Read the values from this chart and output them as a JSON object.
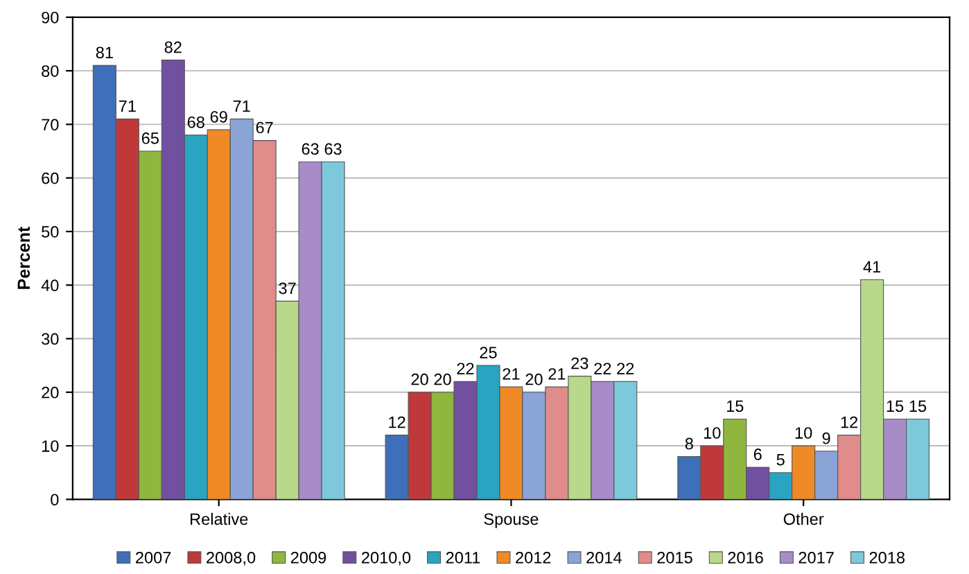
{
  "chart_data": {
    "type": "bar",
    "ylabel": "Percent",
    "categories": [
      "Relative",
      "Spouse",
      "Other"
    ],
    "ylim": [
      0,
      90
    ],
    "yticks": [
      0,
      10,
      20,
      30,
      40,
      50,
      60,
      70,
      80,
      90
    ],
    "grid": "y",
    "legend": "bottom",
    "data_labels": true,
    "series": [
      {
        "name": "2007",
        "color": "#3f6fb8",
        "values": [
          81,
          12,
          8
        ]
      },
      {
        "name": "2008,0",
        "color": "#c0393a",
        "values": [
          71,
          20,
          10
        ]
      },
      {
        "name": "2009",
        "color": "#8fb63e",
        "values": [
          65,
          20,
          15
        ]
      },
      {
        "name": "2010,0",
        "color": "#7250a0",
        "values": [
          82,
          22,
          6
        ]
      },
      {
        "name": "2011",
        "color": "#2aa4c0",
        "values": [
          68,
          25,
          5
        ]
      },
      {
        "name": "2012",
        "color": "#f08a26",
        "values": [
          69,
          21,
          10
        ]
      },
      {
        "name": "2014",
        "color": "#8aa4d8",
        "values": [
          71,
          20,
          9
        ]
      },
      {
        "name": "2015",
        "color": "#e08c8a",
        "values": [
          67,
          21,
          12
        ]
      },
      {
        "name": "2016",
        "color": "#b8d88a",
        "values": [
          37,
          23,
          41
        ]
      },
      {
        "name": "2017",
        "color": "#a88cc8",
        "values": [
          63,
          22,
          15
        ]
      },
      {
        "name": "2018",
        "color": "#7ec8dc",
        "values": [
          63,
          22,
          15
        ]
      }
    ]
  }
}
